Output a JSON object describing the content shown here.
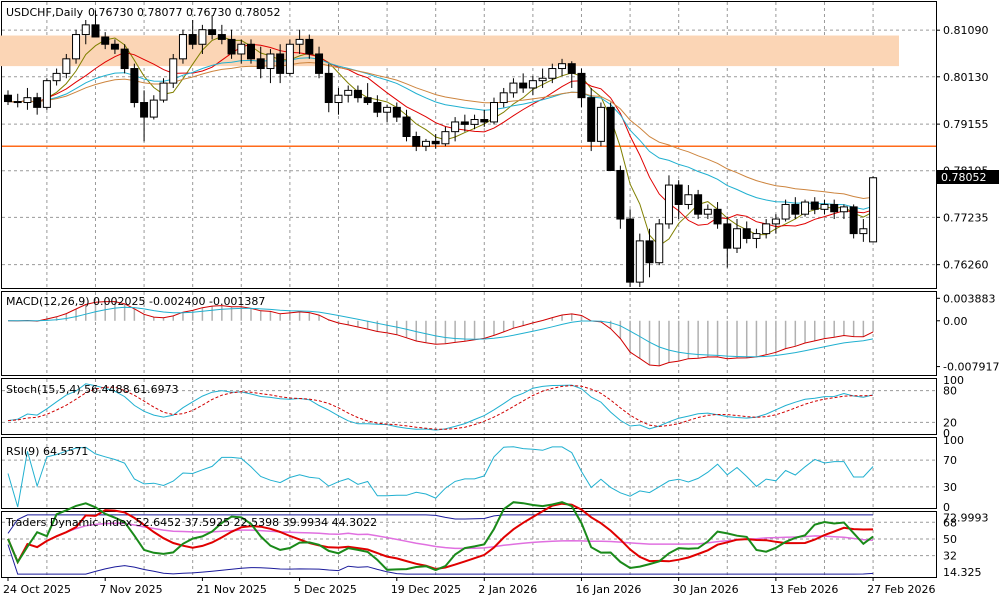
{
  "header": {
    "symbol": "USDCHF,Daily",
    "ohlc": "0.76730 0.78077 0.76730 0.78052"
  },
  "price_panel": {
    "ylim": [
      0.758,
      0.8165
    ],
    "ticks": [
      "0.81090",
      "0.80130",
      "0.79155",
      "0.78195",
      "0.77235",
      "0.76260"
    ],
    "last_price_label": "0.78052",
    "resistance_zone": [
      0.8035,
      0.8098
    ],
    "support_line": 0.787,
    "colors": {
      "bull": "#ffffff",
      "bear": "#000000",
      "ma_fast": "#808000",
      "ma_mid": "#e00000",
      "ma_slow1": "#20b0d0",
      "ma_slow2": "#cd853f",
      "zone": "#fbd5b5",
      "hline": "#ff6a1a"
    }
  },
  "macd_panel": {
    "label": "MACD(12,26,9) 0.002025 -0.002400 -0.001387",
    "ticks": [
      "0.003883",
      "0.00",
      "-0.007917"
    ],
    "ylim": [
      -0.0092,
      0.0048
    ]
  },
  "stoch_panel": {
    "label": "Stoch(15,5,4) 56.4488 61.6973",
    "ticks": [
      "100",
      "80",
      "20",
      "0"
    ]
  },
  "rsi_panel": {
    "label": "RSI(9) 64.5571",
    "ticks": [
      "100",
      "70",
      "30",
      "0"
    ]
  },
  "tdi_panel": {
    "label": "Traders Dynamic Index 52.6452 37.5925 22.5398 39.9934 44.3022",
    "ticks": [
      "72.9993",
      "68",
      "50",
      "32",
      "14.325"
    ]
  },
  "x_axis": {
    "labels": [
      {
        "text": "24 Oct 2025",
        "i": 0
      },
      {
        "text": "7 Nov 2025",
        "i": 10
      },
      {
        "text": "21 Nov 2025",
        "i": 20
      },
      {
        "text": "5 Dec 2025",
        "i": 30
      },
      {
        "text": "19 Dec 2025",
        "i": 40
      },
      {
        "text": "2 Jan 2026",
        "i": 49
      },
      {
        "text": "16 Jan 2026",
        "i": 59
      },
      {
        "text": "30 Jan 2026",
        "i": 69
      },
      {
        "text": "13 Feb 2026",
        "i": 79
      },
      {
        "text": "27 Feb 2026",
        "i": 89
      }
    ]
  },
  "chart_data": {
    "type": "candlestick",
    "title": "USDCHF,Daily",
    "candles": [
      [
        0.7975,
        0.7985,
        0.7955,
        0.7962
      ],
      [
        0.7962,
        0.7978,
        0.795,
        0.796
      ],
      [
        0.796,
        0.799,
        0.7945,
        0.797
      ],
      [
        0.797,
        0.798,
        0.7935,
        0.795
      ],
      [
        0.795,
        0.801,
        0.7945,
        0.8005
      ],
      [
        0.8005,
        0.803,
        0.7995,
        0.802
      ],
      [
        0.802,
        0.806,
        0.801,
        0.805
      ],
      [
        0.805,
        0.811,
        0.804,
        0.81
      ],
      [
        0.81,
        0.813,
        0.808,
        0.812
      ],
      [
        0.812,
        0.815,
        0.81,
        0.8095
      ],
      [
        0.8095,
        0.8105,
        0.807,
        0.808
      ],
      [
        0.808,
        0.809,
        0.806,
        0.807
      ],
      [
        0.807,
        0.808,
        0.802,
        0.803
      ],
      [
        0.803,
        0.804,
        0.795,
        0.796
      ],
      [
        0.796,
        0.7985,
        0.788,
        0.793
      ],
      [
        0.793,
        0.7975,
        0.7925,
        0.7965
      ],
      [
        0.7965,
        0.801,
        0.796,
        0.8
      ],
      [
        0.8,
        0.806,
        0.799,
        0.805
      ],
      [
        0.805,
        0.811,
        0.804,
        0.81
      ],
      [
        0.81,
        0.813,
        0.807,
        0.808
      ],
      [
        0.808,
        0.812,
        0.806,
        0.811
      ],
      [
        0.811,
        0.814,
        0.809,
        0.81
      ],
      [
        0.81,
        0.812,
        0.808,
        0.809
      ],
      [
        0.809,
        0.811,
        0.805,
        0.806
      ],
      [
        0.806,
        0.809,
        0.804,
        0.808
      ],
      [
        0.808,
        0.809,
        0.804,
        0.805
      ],
      [
        0.805,
        0.8075,
        0.801,
        0.803
      ],
      [
        0.803,
        0.807,
        0.8,
        0.806
      ],
      [
        0.806,
        0.808,
        0.8,
        0.802
      ],
      [
        0.802,
        0.809,
        0.8015,
        0.808
      ],
      [
        0.808,
        0.811,
        0.806,
        0.809
      ],
      [
        0.809,
        0.81,
        0.805,
        0.806
      ],
      [
        0.806,
        0.8075,
        0.801,
        0.802
      ],
      [
        0.802,
        0.804,
        0.794,
        0.796
      ],
      [
        0.796,
        0.799,
        0.7935,
        0.7975
      ],
      [
        0.7975,
        0.7995,
        0.796,
        0.7985
      ],
      [
        0.7985,
        0.7995,
        0.796,
        0.797
      ],
      [
        0.797,
        0.8,
        0.7955,
        0.796
      ],
      [
        0.796,
        0.7975,
        0.793,
        0.794
      ],
      [
        0.794,
        0.7955,
        0.792,
        0.795
      ],
      [
        0.795,
        0.796,
        0.792,
        0.793
      ],
      [
        0.793,
        0.7945,
        0.788,
        0.789
      ],
      [
        0.789,
        0.79,
        0.786,
        0.787
      ],
      [
        0.787,
        0.7885,
        0.786,
        0.788
      ],
      [
        0.788,
        0.7895,
        0.7865,
        0.7875
      ],
      [
        0.7875,
        0.791,
        0.787,
        0.79
      ],
      [
        0.79,
        0.793,
        0.788,
        0.792
      ],
      [
        0.792,
        0.7935,
        0.79,
        0.7915
      ],
      [
        0.7915,
        0.7935,
        0.7905,
        0.7925
      ],
      [
        0.7925,
        0.7945,
        0.791,
        0.792
      ],
      [
        0.792,
        0.797,
        0.7915,
        0.796
      ],
      [
        0.796,
        0.799,
        0.795,
        0.798
      ],
      [
        0.798,
        0.801,
        0.797,
        0.8
      ],
      [
        0.8,
        0.802,
        0.798,
        0.799
      ],
      [
        0.799,
        0.8015,
        0.7975,
        0.8005
      ],
      [
        0.8005,
        0.803,
        0.799,
        0.801
      ],
      [
        0.801,
        0.804,
        0.8,
        0.803
      ],
      [
        0.803,
        0.805,
        0.8015,
        0.804
      ],
      [
        0.804,
        0.8045,
        0.799,
        0.802
      ],
      [
        0.802,
        0.803,
        0.795,
        0.797
      ],
      [
        0.797,
        0.799,
        0.786,
        0.788
      ],
      [
        0.788,
        0.796,
        0.787,
        0.795
      ],
      [
        0.795,
        0.796,
        0.782,
        0.782
      ],
      [
        0.782,
        0.783,
        0.77,
        0.772
      ],
      [
        0.772,
        0.774,
        0.758,
        0.759
      ],
      [
        0.759,
        0.769,
        0.758,
        0.7675
      ],
      [
        0.7675,
        0.77,
        0.76,
        0.763
      ],
      [
        0.763,
        0.772,
        0.7625,
        0.771
      ],
      [
        0.771,
        0.781,
        0.77,
        0.779
      ],
      [
        0.779,
        0.78,
        0.772,
        0.775
      ],
      [
        0.775,
        0.779,
        0.774,
        0.777
      ],
      [
        0.777,
        0.778,
        0.772,
        0.773
      ],
      [
        0.773,
        0.775,
        0.772,
        0.774
      ],
      [
        0.774,
        0.7755,
        0.77,
        0.771
      ],
      [
        0.771,
        0.7725,
        0.762,
        0.766
      ],
      [
        0.766,
        0.772,
        0.765,
        0.77
      ],
      [
        0.77,
        0.7715,
        0.767,
        0.768
      ],
      [
        0.768,
        0.77,
        0.766,
        0.769
      ],
      [
        0.769,
        0.772,
        0.768,
        0.771
      ],
      [
        0.771,
        0.773,
        0.769,
        0.772
      ],
      [
        0.772,
        0.776,
        0.7715,
        0.775
      ],
      [
        0.775,
        0.7765,
        0.772,
        0.773
      ],
      [
        0.773,
        0.776,
        0.7725,
        0.7755
      ],
      [
        0.7755,
        0.7765,
        0.773,
        0.774
      ],
      [
        0.774,
        0.776,
        0.773,
        0.775
      ],
      [
        0.775,
        0.776,
        0.772,
        0.7735
      ],
      [
        0.7735,
        0.775,
        0.772,
        0.7745
      ],
      [
        0.7745,
        0.775,
        0.768,
        0.769
      ],
      [
        0.769,
        0.772,
        0.7673,
        0.77
      ],
      [
        0.7673,
        0.7808,
        0.7673,
        0.7805
      ]
    ]
  }
}
